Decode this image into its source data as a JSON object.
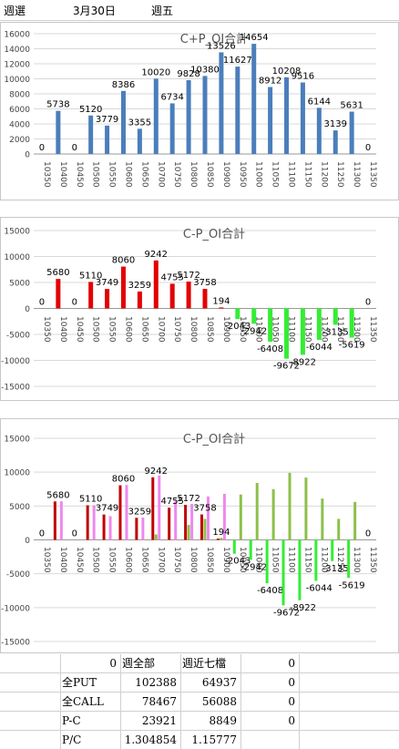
{
  "header": {
    "c1": "週選",
    "c2": "3月30日",
    "c3": "週五"
  },
  "chart_data": [
    {
      "type": "bar",
      "title": "C+P_OI合計",
      "categories": [
        "10350",
        "10400",
        "10450",
        "10500",
        "10550",
        "10600",
        "10650",
        "10700",
        "10750",
        "10800",
        "10850",
        "10900",
        "10950",
        "11000",
        "11050",
        "11100",
        "11150",
        "11200",
        "11250",
        "11300",
        "11350"
      ],
      "values": [
        0,
        5738,
        0,
        5120,
        3779,
        8386,
        3355,
        10020,
        6734,
        9828,
        10380,
        13526,
        11627,
        14654,
        8912,
        10208,
        9516,
        6144,
        3139,
        5631,
        0
      ],
      "ylim": [
        0,
        16000
      ],
      "yticks": [
        0,
        2000,
        4000,
        6000,
        8000,
        10000,
        12000,
        14000,
        16000
      ],
      "colors": {
        "bar": "#4a7ebb"
      }
    },
    {
      "type": "bar",
      "title": "C-P_OI合計",
      "categories": [
        "10350",
        "10400",
        "10450",
        "10500",
        "10550",
        "10600",
        "10650",
        "10700",
        "10750",
        "10800",
        "10850",
        "10900",
        "10950",
        "11000",
        "11050",
        "11100",
        "11150",
        "11200",
        "11250",
        "11300",
        "11350"
      ],
      "values": [
        0,
        5680,
        0,
        5110,
        3749,
        8060,
        3259,
        9242,
        4755,
        5172,
        3758,
        194,
        -2043,
        -2942,
        -6408,
        -9672,
        -8922,
        -6044,
        -3135,
        -5619,
        0
      ],
      "ylim": [
        -15000,
        15000
      ],
      "yticks": [
        -15000,
        -10000,
        -5000,
        0,
        5000,
        10000,
        15000
      ],
      "colors": {
        "positive": "#e30000",
        "negative": "#33ee33"
      }
    },
    {
      "type": "bar",
      "title": "C-P_OI合計",
      "categories": [
        "10350",
        "10400",
        "10450",
        "10500",
        "10550",
        "10600",
        "10650",
        "10700",
        "10750",
        "10800",
        "10850",
        "10900",
        "10950",
        "11000",
        "11050",
        "11100",
        "11150",
        "11200",
        "11250",
        "11300",
        "11350"
      ],
      "series": [
        {
          "values": [
            0,
            5680,
            0,
            5110,
            3749,
            8060,
            3259,
            9242,
            4755,
            5172,
            3758,
            194,
            -2043,
            -2942,
            -6408,
            -9672,
            -8922,
            -6044,
            -3135,
            -5619,
            0
          ]
        },
        {
          "values": [
            0,
            5700,
            0,
            5100,
            3500,
            8100,
            3300,
            9500,
            5800,
            5300,
            6400,
            6800,
            6700,
            8400,
            7500,
            9900,
            9200,
            6100,
            3100,
            5600,
            0
          ]
        },
        {
          "values": [
            0,
            0,
            0,
            0,
            0,
            0,
            0,
            800,
            0,
            2200,
            3100,
            300,
            0,
            0,
            0,
            0,
            0,
            0,
            0,
            0,
            0
          ]
        }
      ],
      "labels": [
        "0",
        "5680",
        "0",
        "5110",
        "3749",
        "8060",
        "3259",
        "9242",
        "4755",
        "5172",
        "3758",
        "194",
        "-2043",
        "-2942",
        "-6408",
        "-9672",
        "-8922",
        "-6044",
        "-3135",
        "-5619",
        "0"
      ],
      "ylim": [
        -15000,
        15000
      ],
      "yticks": [
        -15000,
        -10000,
        -5000,
        0,
        5000,
        10000,
        15000
      ],
      "colors": {
        "positive": "#c00000",
        "negative": "#33ee33",
        "second": "#ee88ee",
        "third": "#8cc04a"
      }
    }
  ],
  "table": {
    "header": {
      "c1": "0",
      "c2": "週全部",
      "c3": "週近七檔",
      "c4": ""
    },
    "rows": [
      {
        "label": "全PUT",
        "v1": "102388",
        "v2": "64937",
        "v3": "0"
      },
      {
        "label": "全CALL",
        "v1": "78467",
        "v2": "56088",
        "v3": "0"
      },
      {
        "label": "P-C",
        "v1": "23921",
        "v2": "8849",
        "v3": "0"
      },
      {
        "label": "P/C",
        "v1": "1.304854",
        "v2": "1.15777",
        "v3": ""
      }
    ],
    "header_v3": "0"
  }
}
